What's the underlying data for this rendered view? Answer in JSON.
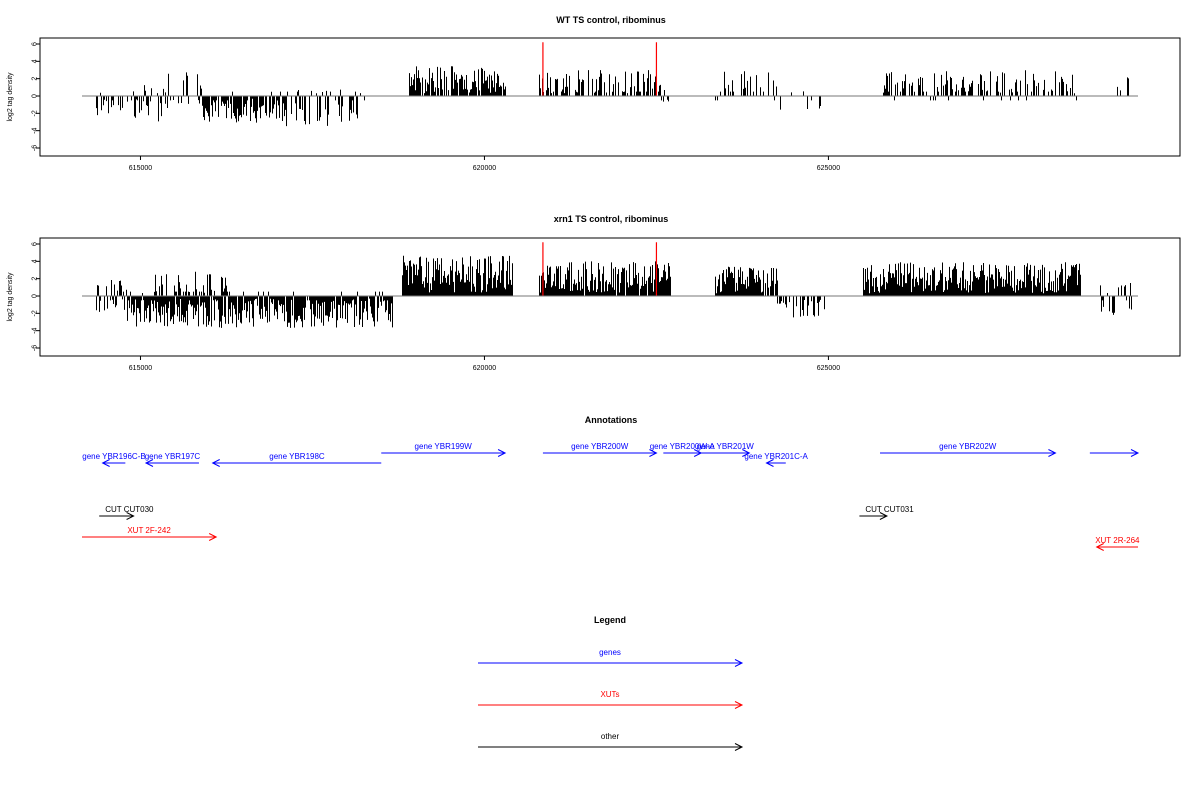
{
  "chart_data": [
    {
      "type": "bar",
      "title": "WT TS control, ribominus",
      "xlabel": "",
      "ylabel": "log2 tag density",
      "xlim": [
        614150,
        629500
      ],
      "ylim": [
        -6,
        6
      ],
      "xticks": [
        615000,
        620000,
        625000
      ],
      "yticks": [
        6,
        4,
        2,
        0,
        -2,
        -4,
        -6
      ],
      "series_color": "#000000",
      "highlight_color": "#ff0000",
      "highlights": [
        {
          "x": 620850,
          "y": 6.2
        },
        {
          "x": 622500,
          "y": 6.2
        }
      ],
      "segments": [
        {
          "start": 614350,
          "end": 614900,
          "density": 0.4,
          "mean": -0.5,
          "amp": 2.0,
          "seed": 11
        },
        {
          "start": 614900,
          "end": 615350,
          "density": 0.6,
          "mean": -0.8,
          "amp": 2.2,
          "seed": 12
        },
        {
          "start": 615350,
          "end": 615900,
          "density": 0.35,
          "mean": 0.6,
          "amp": 2.2,
          "seed": 13
        },
        {
          "start": 615900,
          "end": 617000,
          "density": 0.75,
          "mean": -1.3,
          "amp": 1.8,
          "seed": 14
        },
        {
          "start": 617000,
          "end": 618300,
          "density": 0.55,
          "mean": -1.3,
          "amp": 2.2,
          "seed": 15
        },
        {
          "start": 618900,
          "end": 620300,
          "density": 0.85,
          "mean": 1.9,
          "amp": 1.6,
          "seed": 16
        },
        {
          "start": 620800,
          "end": 622550,
          "density": 0.5,
          "mean": 1.5,
          "amp": 1.5,
          "seed": 17
        },
        {
          "start": 622550,
          "end": 622700,
          "density": 0.3,
          "mean": 0.3,
          "amp": 1.2,
          "seed": 18
        },
        {
          "start": 623350,
          "end": 624300,
          "density": 0.4,
          "mean": 1.3,
          "amp": 1.6,
          "seed": 19
        },
        {
          "start": 624300,
          "end": 624900,
          "density": 0.25,
          "mean": -0.6,
          "amp": 1.2,
          "seed": 20
        },
        {
          "start": 625800,
          "end": 628600,
          "density": 0.5,
          "mean": 1.4,
          "amp": 1.6,
          "seed": 21
        },
        {
          "start": 629200,
          "end": 629350,
          "density": 0.4,
          "mean": 1.5,
          "amp": 1.0,
          "seed": 22
        }
      ]
    },
    {
      "type": "bar",
      "title": "xrn1 TS control, ribominus",
      "xlabel": "",
      "ylabel": "log2 tag density",
      "xlim": [
        614150,
        629500
      ],
      "ylim": [
        -6,
        6
      ],
      "xticks": [
        615000,
        620000,
        625000
      ],
      "yticks": [
        6,
        4,
        2,
        0,
        -2,
        -4,
        -6
      ],
      "series_color": "#000000",
      "highlight_color": "#ff0000",
      "highlights": [
        {
          "x": 620850,
          "y": 6.2
        },
        {
          "x": 622500,
          "y": 6.2
        }
      ],
      "segments": [
        {
          "start": 614350,
          "end": 614800,
          "density": 0.8,
          "mean": 0.0,
          "amp": 2.0,
          "seed": 31
        },
        {
          "start": 614800,
          "end": 616000,
          "density": 1.0,
          "mean": -1.6,
          "amp": 2.0,
          "seed": 32
        },
        {
          "start": 615200,
          "end": 616300,
          "density": 0.5,
          "mean": 1.2,
          "amp": 1.6,
          "seed": 33
        },
        {
          "start": 616000,
          "end": 618650,
          "density": 0.95,
          "mean": -1.7,
          "amp": 2.0,
          "seed": 34
        },
        {
          "start": 618800,
          "end": 620400,
          "density": 1.0,
          "mean": 2.6,
          "amp": 2.2,
          "seed": 35
        },
        {
          "start": 620800,
          "end": 622700,
          "density": 0.95,
          "mean": 2.2,
          "amp": 1.8,
          "seed": 36
        },
        {
          "start": 623350,
          "end": 624250,
          "density": 0.9,
          "mean": 1.8,
          "amp": 1.6,
          "seed": 37
        },
        {
          "start": 624250,
          "end": 624950,
          "density": 0.5,
          "mean": -1.4,
          "amp": 1.2,
          "seed": 38
        },
        {
          "start": 625500,
          "end": 628650,
          "density": 1.0,
          "mean": 2.1,
          "amp": 1.8,
          "seed": 39
        },
        {
          "start": 628950,
          "end": 629400,
          "density": 0.6,
          "mean": -0.4,
          "amp": 2.0,
          "seed": 40
        }
      ]
    }
  ],
  "annotations": {
    "title": "Annotations",
    "features": [
      {
        "label": "gene YBR196C-B",
        "type": "gene",
        "color": "#0000ff",
        "start": 614450,
        "end": 614780,
        "strand": "-",
        "row": 1
      },
      {
        "label": "gene YBR197C",
        "type": "gene",
        "color": "#0000ff",
        "start": 615080,
        "end": 615850,
        "strand": "-",
        "row": 1
      },
      {
        "label": "gene YBR198C",
        "type": "gene",
        "color": "#0000ff",
        "start": 616050,
        "end": 618500,
        "strand": "-",
        "row": 1
      },
      {
        "label": "gene YBR199W",
        "type": "gene",
        "color": "#0000ff",
        "start": 618500,
        "end": 620300,
        "strand": "+",
        "row": 0
      },
      {
        "label": "gene YBR200W",
        "type": "gene",
        "color": "#0000ff",
        "start": 620850,
        "end": 622500,
        "strand": "+",
        "row": 0
      },
      {
        "label": "gene YBR200W-A",
        "type": "gene",
        "color": "#0000ff",
        "start": 622600,
        "end": 623150,
        "strand": "+",
        "row": 0
      },
      {
        "label": "gene YBR201W",
        "type": "gene",
        "color": "#0000ff",
        "start": 623150,
        "end": 623850,
        "strand": "+",
        "row": 0
      },
      {
        "label": "gene YBR201C-A",
        "type": "gene",
        "color": "#0000ff",
        "start": 624100,
        "end": 624380,
        "strand": "-",
        "row": 1
      },
      {
        "label": "gene YBR202W",
        "type": "gene",
        "color": "#0000ff",
        "start": 625750,
        "end": 628300,
        "strand": "+",
        "row": 0
      },
      {
        "label": "",
        "type": "gene",
        "color": "#0000ff",
        "start": 628800,
        "end": 629500,
        "strand": "+",
        "row": 0
      },
      {
        "label": "CUT CUT030",
        "type": "other",
        "color": "#000000",
        "start": 614400,
        "end": 614900,
        "strand": "+",
        "row": 3
      },
      {
        "label": "CUT CUT031",
        "type": "other",
        "color": "#000000",
        "start": 625450,
        "end": 625850,
        "strand": "+",
        "row": 3
      },
      {
        "label": "XUT 2F-242",
        "type": "xut",
        "color": "#ff0000",
        "start": 614150,
        "end": 616100,
        "strand": "+",
        "row": 4
      },
      {
        "label": "XUT 2R-264",
        "type": "xut",
        "color": "#ff0000",
        "start": 628900,
        "end": 629500,
        "strand": "-",
        "row": 5
      }
    ]
  },
  "legend": {
    "title": "Legend",
    "items": [
      {
        "label": "genes",
        "color": "#0000ff"
      },
      {
        "label": "XUTs",
        "color": "#ff0000"
      },
      {
        "label": "other",
        "color": "#000000"
      }
    ]
  }
}
